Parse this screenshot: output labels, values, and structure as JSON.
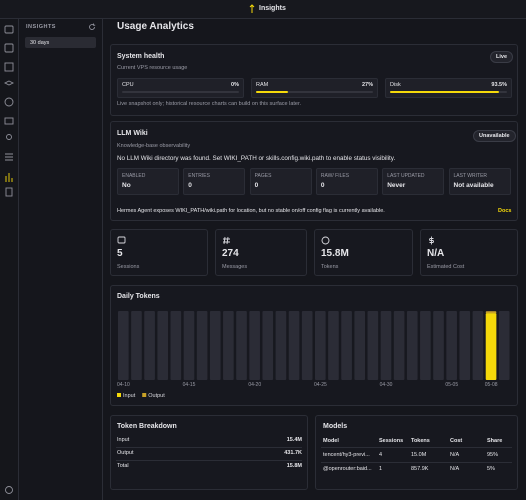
{
  "topbar": {
    "title": "Insights"
  },
  "sidebar": {
    "heading": "INSIGHTS",
    "items": [
      "30 days"
    ]
  },
  "header": {
    "title": "Usage Analytics"
  },
  "system_health": {
    "title": "System health",
    "subtitle": "Current VPS resource usage",
    "badge": "Live",
    "metrics": [
      {
        "name": "CPU",
        "value": 0,
        "label": "0%"
      },
      {
        "name": "RAM",
        "value": 27,
        "label": "27%"
      },
      {
        "name": "Disk",
        "value": 93.5,
        "label": "93.5%"
      }
    ],
    "note": "Live snapshot only; historical resource charts can build on this surface later."
  },
  "llm_wiki": {
    "title": "LLM Wiki",
    "subtitle": "Knowledge-base observability",
    "badge": "Unavailable",
    "message": "No LLM Wiki directory was found. Set WIKI_PATH or skills.config.wiki.path to enable status visibility.",
    "stats": [
      {
        "label": "ENABLED",
        "value": "No"
      },
      {
        "label": "ENTRIES",
        "value": "0"
      },
      {
        "label": "PAGES",
        "value": "0"
      },
      {
        "label": "RAW/ FILES",
        "value": "0"
      },
      {
        "label": "LAST UPDATED",
        "value": "Never"
      },
      {
        "label": "LAST WRITER",
        "value": "Not available"
      }
    ],
    "note": "Hermes Agent exposes WIKI_PATH/wiki.path for location, but no stable on/off config flag is currently available.",
    "link": "Docs"
  },
  "stats": [
    {
      "value": "5",
      "label": "Sessions"
    },
    {
      "value": "274",
      "label": "Messages"
    },
    {
      "value": "15.8M",
      "label": "Tokens"
    },
    {
      "value": "N/A",
      "label": "Estimated Cost"
    }
  ],
  "chart_data": {
    "type": "bar",
    "title": "Daily Tokens",
    "stacked": true,
    "categories": [
      "04-10",
      null,
      null,
      null,
      null,
      "04-15",
      null,
      null,
      null,
      null,
      "04-20",
      null,
      null,
      null,
      null,
      "04-25",
      null,
      null,
      null,
      null,
      "04-30",
      null,
      null,
      null,
      null,
      "05-05",
      null,
      null,
      "05-08",
      null
    ],
    "series": [
      {
        "name": "Input",
        "color": "#f5d90a",
        "values": [
          0,
          0,
          0,
          0,
          0,
          0,
          0,
          0,
          0,
          0,
          0,
          0,
          0,
          0,
          0,
          0,
          0,
          0,
          0,
          0,
          0,
          0,
          0,
          0,
          0,
          0,
          0,
          0,
          15400000,
          0
        ]
      },
      {
        "name": "Output",
        "color": "#c9a227",
        "values": [
          0,
          0,
          0,
          0,
          0,
          0,
          0,
          0,
          0,
          0,
          0,
          0,
          0,
          0,
          0,
          0,
          0,
          0,
          0,
          0,
          0,
          0,
          0,
          0,
          0,
          0,
          0,
          0,
          431700,
          0
        ]
      }
    ],
    "ylim": [
      0,
      15900000
    ]
  },
  "token_breakdown": {
    "title": "Token Breakdown",
    "rows": [
      [
        "Input",
        "15.4M"
      ],
      [
        "Output",
        "431.7K"
      ],
      [
        "Total",
        "15.8M"
      ]
    ]
  },
  "models": {
    "title": "Models",
    "columns": [
      "Model",
      "Sessions",
      "Tokens",
      "Cost",
      "Share"
    ],
    "rows": [
      [
        "tencent/hy3-previ...",
        "4",
        "15.0M",
        "N/A",
        "95%"
      ],
      [
        "@openrouter:baid...",
        "1",
        "857.9K",
        "N/A",
        "5%"
      ]
    ]
  }
}
